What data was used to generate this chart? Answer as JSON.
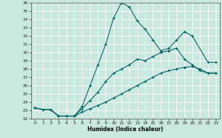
{
  "title": "",
  "xlabel": "Humidex (Indice chaleur)",
  "xlim": [
    -0.5,
    23.5
  ],
  "ylim": [
    22,
    36
  ],
  "yticks": [
    22,
    23,
    24,
    25,
    26,
    27,
    28,
    29,
    30,
    31,
    32,
    33,
    34,
    35,
    36
  ],
  "xticks": [
    0,
    1,
    2,
    3,
    4,
    5,
    6,
    7,
    8,
    9,
    10,
    11,
    12,
    13,
    14,
    15,
    16,
    17,
    18,
    19,
    20,
    21,
    22,
    23
  ],
  "bg_color": "#c8e8e0",
  "grid_color": "#ffffff",
  "line_color": "#006060",
  "series": [
    {
      "x": [
        0,
        1,
        2,
        3,
        4,
        5,
        6,
        7,
        8,
        9,
        10,
        11,
        12,
        13,
        14,
        15,
        16,
        17,
        18,
        19,
        20,
        22,
        23
      ],
      "y": [
        23.3,
        23.1,
        23.1,
        22.3,
        22.3,
        22.3,
        23.5,
        26.0,
        28.5,
        31.0,
        34.2,
        36.0,
        35.5,
        33.8,
        32.8,
        31.5,
        30.2,
        30.5,
        31.5,
        32.5,
        32.0,
        28.8,
        28.8
      ]
    },
    {
      "x": [
        0,
        1,
        2,
        3,
        4,
        5,
        6,
        7,
        8,
        9,
        10,
        11,
        12,
        13,
        14,
        15,
        16,
        17,
        18,
        19,
        20,
        21,
        22,
        23
      ],
      "y": [
        23.3,
        23.1,
        23.1,
        22.3,
        22.3,
        22.3,
        23.2,
        24.2,
        25.2,
        26.5,
        27.5,
        28.0,
        28.5,
        29.2,
        29.0,
        29.5,
        30.0,
        30.2,
        30.5,
        29.2,
        28.5,
        27.8,
        27.5,
        27.5
      ]
    },
    {
      "x": [
        0,
        1,
        2,
        3,
        4,
        5,
        6,
        7,
        8,
        9,
        10,
        11,
        12,
        13,
        14,
        15,
        16,
        17,
        18,
        19,
        20,
        21,
        22,
        23
      ],
      "y": [
        23.3,
        23.1,
        23.1,
        22.3,
        22.3,
        22.3,
        22.8,
        23.2,
        23.6,
        24.0,
        24.5,
        25.0,
        25.5,
        26.0,
        26.5,
        27.0,
        27.5,
        27.8,
        28.0,
        28.2,
        28.3,
        28.0,
        27.5,
        27.5
      ]
    }
  ]
}
